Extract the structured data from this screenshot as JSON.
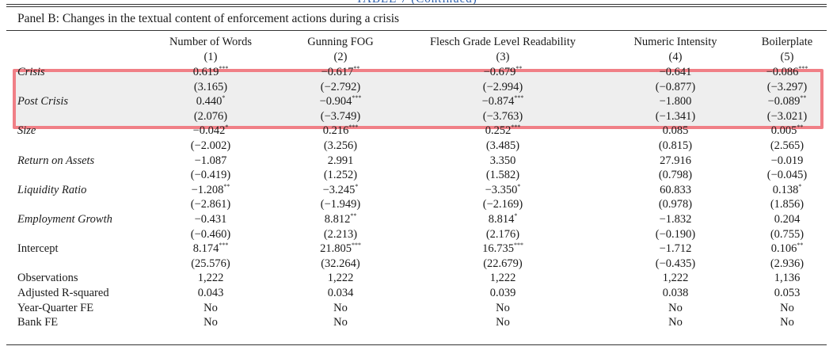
{
  "top_caption": "TABLE 7 (Continued)",
  "panel_title": "Panel B: Changes in the textual content of enforcement actions during a crisis",
  "columns": [
    {
      "name": "Number of Words",
      "num": "(1)"
    },
    {
      "name": "Gunning FOG",
      "num": "(2)"
    },
    {
      "name": "Flesch Grade Level Readability",
      "num": "(3)"
    },
    {
      "name": "Numeric Intensity",
      "num": "(4)"
    },
    {
      "name": "Boilerplate",
      "num": "(5)"
    }
  ],
  "rows": [
    {
      "label": "Crisis",
      "italic": true,
      "coef": [
        {
          "v": "0.619",
          "s": "***"
        },
        {
          "v": "−0.617",
          "s": "**"
        },
        {
          "v": "−0.679",
          "s": "**"
        },
        {
          "v": "−0.641",
          "s": ""
        },
        {
          "v": "−0.086",
          "s": "***"
        }
      ],
      "t": [
        "(3.165)",
        "(−2.792)",
        "(−2.994)",
        "(−0.877)",
        "(−3.297)"
      ]
    },
    {
      "label": "Post Crisis",
      "italic": true,
      "coef": [
        {
          "v": "0.440",
          "s": "*"
        },
        {
          "v": "−0.904",
          "s": "***"
        },
        {
          "v": "−0.874",
          "s": "***"
        },
        {
          "v": "−1.800",
          "s": ""
        },
        {
          "v": "−0.089",
          "s": "**"
        }
      ],
      "t": [
        "(2.076)",
        "(−3.749)",
        "(−3.763)",
        "(−1.341)",
        "(−3.021)"
      ]
    },
    {
      "label": "Size",
      "italic": true,
      "coef": [
        {
          "v": "−0.042",
          "s": "*"
        },
        {
          "v": "0.216",
          "s": "***"
        },
        {
          "v": "0.252",
          "s": "***"
        },
        {
          "v": "0.085",
          "s": ""
        },
        {
          "v": "0.005",
          "s": "**"
        }
      ],
      "t": [
        "(−2.002)",
        "(3.256)",
        "(3.485)",
        "(0.815)",
        "(2.565)"
      ]
    },
    {
      "label": "Return on Assets",
      "italic": true,
      "coef": [
        {
          "v": "−1.087",
          "s": ""
        },
        {
          "v": "2.991",
          "s": ""
        },
        {
          "v": "3.350",
          "s": ""
        },
        {
          "v": "27.916",
          "s": ""
        },
        {
          "v": "−0.019",
          "s": ""
        }
      ],
      "t": [
        "(−0.419)",
        "(1.252)",
        "(1.582)",
        "(0.798)",
        "(−0.045)"
      ]
    },
    {
      "label": "Liquidity Ratio",
      "italic": true,
      "coef": [
        {
          "v": "−1.208",
          "s": "**"
        },
        {
          "v": "−3.245",
          "s": "*"
        },
        {
          "v": "−3.350",
          "s": "*"
        },
        {
          "v": "60.833",
          "s": ""
        },
        {
          "v": "0.138",
          "s": "*"
        }
      ],
      "t": [
        "(−2.861)",
        "(−1.949)",
        "(−2.169)",
        "(0.978)",
        "(1.856)"
      ]
    },
    {
      "label": "Employment Growth",
      "italic": true,
      "coef": [
        {
          "v": "−0.431",
          "s": ""
        },
        {
          "v": "8.812",
          "s": "**"
        },
        {
          "v": "8.814",
          "s": "*"
        },
        {
          "v": "−1.832",
          "s": ""
        },
        {
          "v": "0.204",
          "s": ""
        }
      ],
      "t": [
        "(−0.460)",
        "(2.213)",
        "(2.176)",
        "(−0.190)",
        "(0.755)"
      ]
    },
    {
      "label": "Intercept",
      "italic": false,
      "coef": [
        {
          "v": "8.174",
          "s": "***"
        },
        {
          "v": "21.805",
          "s": "***"
        },
        {
          "v": "16.735",
          "s": "***"
        },
        {
          "v": "−1.712",
          "s": ""
        },
        {
          "v": "0.106",
          "s": "**"
        }
      ],
      "t": [
        "(25.576)",
        "(32.264)",
        "(22.679)",
        "(−0.435)",
        "(2.936)"
      ]
    }
  ],
  "stats": [
    {
      "label": "Observations",
      "vals": [
        "1,222",
        "1,222",
        "1,222",
        "1,222",
        "1,136"
      ]
    },
    {
      "label": "Adjusted R-squared",
      "vals": [
        "0.043",
        "0.034",
        "0.039",
        "0.038",
        "0.053"
      ]
    },
    {
      "label": "Year-Quarter FE",
      "vals": [
        "No",
        "No",
        "No",
        "No",
        "No"
      ]
    },
    {
      "label": "Bank FE",
      "vals": [
        "No",
        "No",
        "No",
        "No",
        "No"
      ]
    }
  ]
}
